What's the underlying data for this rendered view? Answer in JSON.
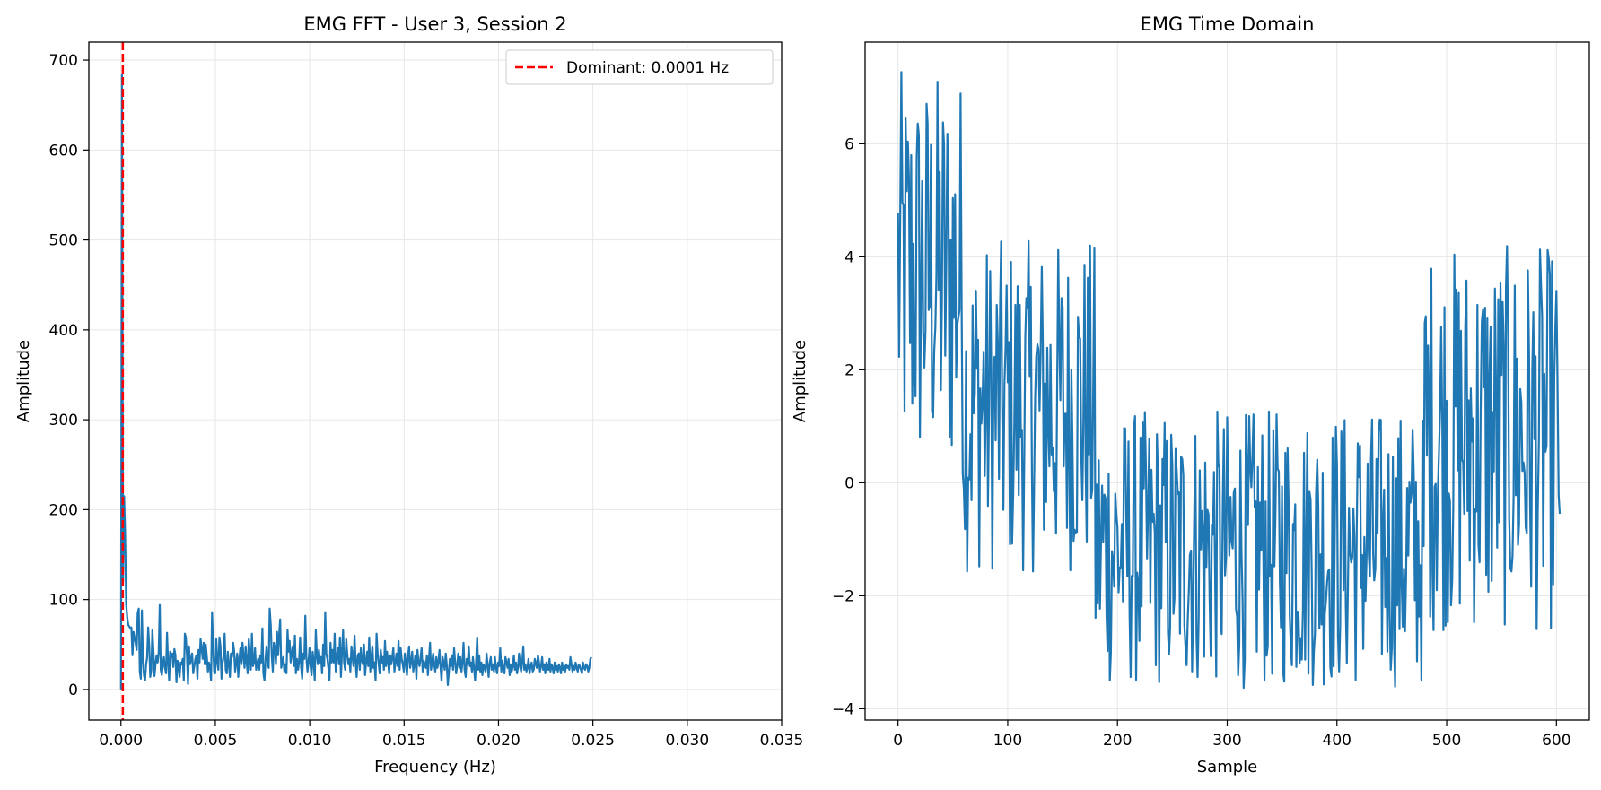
{
  "colors": {
    "line": "#1f77b4",
    "dominant_line": "#ff0000",
    "grid": "#e6e6e6",
    "axes": "#000000"
  },
  "chart_data": [
    {
      "type": "line",
      "title": "EMG FFT - User 3, Session 2",
      "xlabel": "Frequency (Hz)",
      "ylabel": "Amplitude",
      "xlim": [
        -0.0017,
        0.035
      ],
      "ylim": [
        -34,
        720
      ],
      "xticks": [
        0.0,
        0.005,
        0.01,
        0.015,
        0.02,
        0.025,
        0.03,
        0.035
      ],
      "xtick_labels": [
        "0.000",
        "0.005",
        "0.010",
        "0.015",
        "0.020",
        "0.025",
        "0.030",
        "0.035"
      ],
      "yticks": [
        0,
        100,
        200,
        300,
        400,
        500,
        600,
        700
      ],
      "ytick_labels": [
        "0",
        "100",
        "200",
        "300",
        "400",
        "500",
        "600",
        "700"
      ],
      "grid": true,
      "legend": {
        "placement": "top-right",
        "entries": [
          {
            "label": "Dominant: 0.0001 Hz",
            "style": "dashed",
            "color": "#ff0000"
          }
        ]
      },
      "dominant_frequency": 0.0001,
      "series": [
        {
          "x_start": 0.0,
          "x_step": 5.55e-05,
          "values": [
            0,
            684,
            120,
            215,
            175,
            95,
            80,
            72,
            70,
            68,
            69,
            38,
            64,
            58,
            52,
            44,
            85,
            90,
            20,
            12,
            88,
            32,
            16,
            10,
            28,
            35,
            69,
            48,
            14,
            22,
            66,
            42,
            15,
            28,
            38,
            30,
            41,
            94,
            22,
            16,
            28,
            36,
            24,
            18,
            63,
            30,
            10,
            42,
            36,
            40,
            25,
            45,
            38,
            8,
            32,
            26,
            14,
            30,
            28,
            34,
            10,
            62,
            58,
            38,
            6,
            48,
            28,
            34,
            40,
            18,
            26,
            34,
            38,
            12,
            44,
            30,
            56,
            46,
            34,
            52,
            28,
            50,
            36,
            20,
            30,
            24,
            10,
            86,
            48,
            20,
            18,
            56,
            30,
            22,
            58,
            48,
            12,
            30,
            36,
            62,
            22,
            18,
            42,
            28,
            14,
            40,
            36,
            52,
            44,
            20,
            30,
            40,
            14,
            34,
            46,
            28,
            52,
            36,
            24,
            48,
            30,
            18,
            56,
            40,
            22,
            62,
            26,
            30,
            46,
            22,
            28,
            34,
            22,
            38,
            30,
            68,
            18,
            10,
            34,
            48,
            30,
            24,
            90,
            72,
            36,
            20,
            52,
            46,
            28,
            64,
            38,
            60,
            78,
            24,
            30,
            36,
            20,
            28,
            18,
            66,
            42,
            54,
            30,
            40,
            48,
            26,
            60,
            18,
            34,
            22,
            30,
            58,
            24,
            12,
            40,
            34,
            82,
            36,
            20,
            30,
            46,
            26,
            16,
            42,
            30,
            10,
            66,
            38,
            28,
            44,
            30,
            36,
            18,
            50,
            26,
            86,
            40,
            34,
            24,
            10,
            52,
            30,
            44,
            30,
            62,
            20,
            36,
            46,
            28,
            58,
            14,
            42,
            66,
            30,
            22,
            56,
            40,
            28,
            34,
            20,
            48,
            36,
            26,
            60,
            30,
            14,
            38,
            40,
            22,
            46,
            32,
            28,
            50,
            16,
            30,
            42,
            26,
            58,
            20,
            36,
            48,
            24,
            30,
            10,
            62,
            40,
            28,
            18,
            44,
            30,
            36,
            22,
            54,
            26,
            42,
            30,
            18,
            38,
            28,
            36,
            46,
            20,
            30,
            40,
            26,
            54,
            22,
            46,
            34,
            28,
            20,
            40,
            30,
            16,
            36,
            48,
            24,
            30,
            42,
            20,
            28,
            38,
            12,
            44,
            30,
            26,
            36,
            46,
            20,
            32,
            28,
            24,
            38,
            16,
            34,
            52,
            22,
            30,
            40,
            28,
            20,
            36,
            24,
            30,
            44,
            26,
            10,
            36,
            30,
            22,
            40,
            28,
            5,
            20,
            34,
            26,
            38,
            22,
            46,
            30,
            18,
            28,
            40,
            24,
            36,
            20,
            30,
            52,
            22,
            14,
            34,
            28,
            48,
            26,
            30,
            20,
            36,
            24,
            10,
            30,
            58,
            22,
            38,
            20,
            30,
            16,
            28,
            24,
            20,
            40,
            26,
            14,
            30,
            36,
            22,
            28,
            20,
            36,
            24,
            18,
            30,
            26,
            46,
            20,
            32,
            22,
            18,
            36,
            30,
            24,
            34,
            16,
            28,
            20,
            26,
            38,
            22,
            30,
            18,
            24,
            40,
            26,
            20,
            30,
            48,
            22,
            28,
            20,
            24,
            34,
            18,
            26,
            30,
            20,
            22,
            34,
            28,
            24,
            38,
            30,
            20,
            26,
            36,
            22,
            28,
            18,
            30,
            26,
            22,
            34,
            20,
            28,
            24,
            18,
            30,
            22,
            26,
            20,
            28,
            24,
            18,
            30,
            22,
            26,
            20,
            28,
            24,
            26,
            22,
            36,
            28,
            20,
            26,
            22,
            30,
            24,
            20,
            28,
            26,
            22,
            18,
            30,
            24,
            22,
            28,
            26,
            20,
            24,
            34,
            36
          ]
        }
      ]
    },
    {
      "type": "line",
      "title": "EMG Time Domain",
      "xlabel": "Sample",
      "ylabel": "Amplitude",
      "xlim": [
        -30,
        630
      ],
      "ylim": [
        -4.2,
        7.8
      ],
      "xticks": [
        0,
        100,
        200,
        300,
        400,
        500,
        600
      ],
      "xtick_labels": [
        "0",
        "100",
        "200",
        "300",
        "400",
        "500",
        "600"
      ],
      "yticks": [
        -4,
        -2,
        0,
        2,
        4,
        6
      ],
      "ytick_labels": [
        "−4",
        "−2",
        "0",
        "2",
        "4",
        "6"
      ],
      "grid": true,
      "segments": [
        {
          "start": 0,
          "end": 60,
          "low": 0.0,
          "high": 7.3
        },
        {
          "start": 60,
          "end": 180,
          "low": -1.6,
          "high": 4.3
        },
        {
          "start": 180,
          "end": 480,
          "low": -3.65,
          "high": 1.3
        },
        {
          "start": 480,
          "end": 603,
          "low": -2.65,
          "high": 4.2
        }
      ],
      "series": [
        {
          "x_start": 0,
          "x_step": 1,
          "values": []
        }
      ]
    }
  ]
}
